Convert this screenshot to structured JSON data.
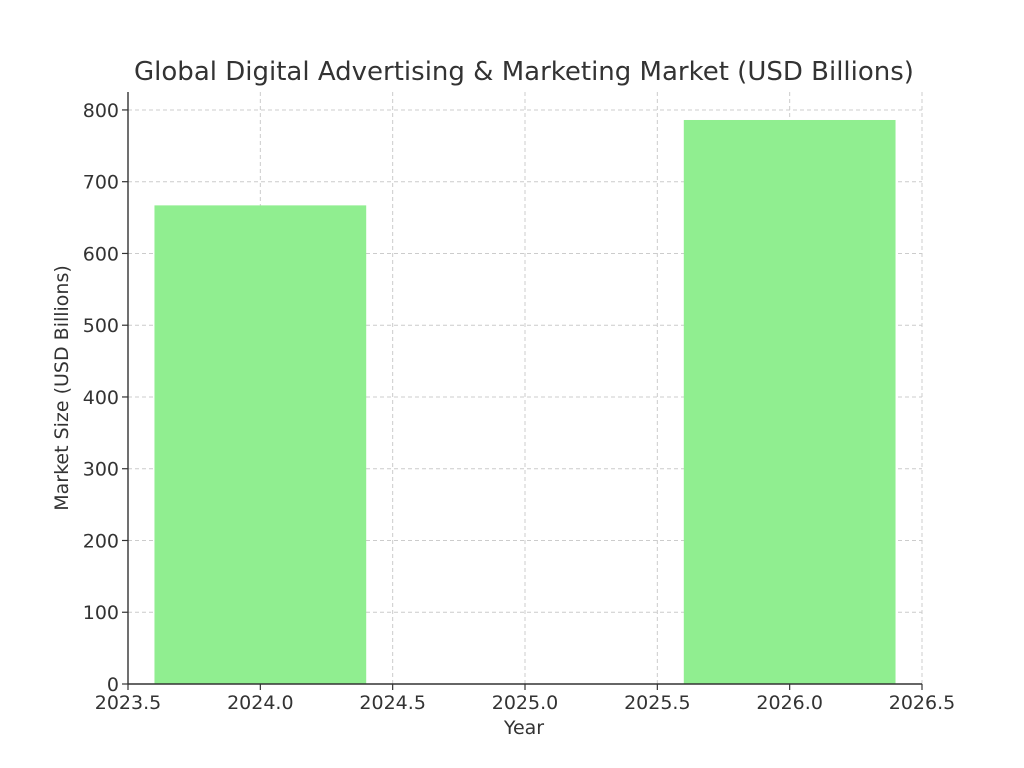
{
  "chart_data": {
    "type": "bar",
    "title": "Global Digital Advertising & Marketing Market (USD Billions)",
    "xlabel": "Year",
    "ylabel": "Market Size (USD Billions)",
    "x": [
      2024,
      2026
    ],
    "values": [
      667,
      786
    ],
    "bar_width": 0.8,
    "xlim": [
      2023.5,
      2026.5
    ],
    "ylim": [
      0,
      825
    ],
    "xticks": [
      2023.5,
      2024.0,
      2024.5,
      2025.0,
      2025.5,
      2026.0,
      2026.5
    ],
    "xtick_labels": [
      "2023.5",
      "2024.0",
      "2024.5",
      "2025.0",
      "2025.5",
      "2026.0",
      "2026.5"
    ],
    "yticks": [
      0,
      100,
      200,
      300,
      400,
      500,
      600,
      700,
      800
    ],
    "ytick_labels": [
      "0",
      "100",
      "200",
      "300",
      "400",
      "500",
      "600",
      "700",
      "800"
    ],
    "bar_color": "#90ee90",
    "grid": true,
    "grid_color": "#cccccc",
    "text_color": "#333333"
  }
}
